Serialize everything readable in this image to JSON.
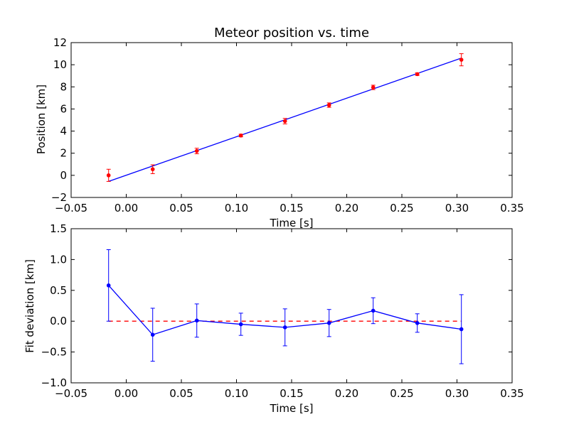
{
  "chart_data": [
    {
      "type": "scatter",
      "title": "Meteor position vs. time",
      "xlabel": "Time [s]",
      "ylabel": "Position [km]",
      "xlim": [
        -0.05,
        0.35
      ],
      "ylim": [
        -2,
        12
      ],
      "xticks": [
        "−0.05",
        "0.00",
        "0.05",
        "0.10",
        "0.15",
        "0.20",
        "0.25",
        "0.30",
        "0.35"
      ],
      "xtick_values": [
        -0.05,
        0.0,
        0.05,
        0.1,
        0.15,
        0.2,
        0.25,
        0.3,
        0.35
      ],
      "yticks": [
        "−2",
        "0",
        "2",
        "4",
        "6",
        "8",
        "10",
        "12"
      ],
      "ytick_values": [
        -2,
        0,
        2,
        4,
        6,
        8,
        10,
        12
      ],
      "grid": false,
      "series": [
        {
          "kind": "errorbar-points",
          "color": "#ff0000",
          "x": [
            -0.016,
            0.024,
            0.064,
            0.104,
            0.144,
            0.184,
            0.224,
            0.264,
            0.304
          ],
          "y": [
            0.0,
            0.55,
            2.2,
            3.6,
            4.9,
            6.35,
            7.95,
            9.15,
            10.45
          ],
          "yerr": [
            0.55,
            0.4,
            0.25,
            0.12,
            0.25,
            0.2,
            0.2,
            0.12,
            0.55
          ]
        },
        {
          "kind": "fit-line",
          "color": "#0000ff",
          "x": [
            -0.016,
            0.304
          ],
          "y": [
            -0.55,
            10.6
          ]
        }
      ]
    },
    {
      "type": "line",
      "title": "",
      "xlabel": "Time [s]",
      "ylabel": "Fit deviation [km]",
      "xlim": [
        -0.05,
        0.35
      ],
      "ylim": [
        -1.0,
        1.5
      ],
      "xticks": [
        "−0.05",
        "0.00",
        "0.05",
        "0.10",
        "0.15",
        "0.20",
        "0.25",
        "0.30",
        "0.35"
      ],
      "xtick_values": [
        -0.05,
        0.0,
        0.05,
        0.1,
        0.15,
        0.2,
        0.25,
        0.3,
        0.35
      ],
      "yticks": [
        "−1.0",
        "−0.5",
        "0.0",
        "0.5",
        "1.0",
        "1.5"
      ],
      "ytick_values": [
        -1.0,
        -0.5,
        0.0,
        0.5,
        1.0,
        1.5
      ],
      "grid": false,
      "series": [
        {
          "kind": "errorbar-line",
          "color": "#0000ff",
          "x": [
            -0.016,
            0.024,
            0.064,
            0.104,
            0.144,
            0.184,
            0.224,
            0.264,
            0.304
          ],
          "y": [
            0.58,
            -0.22,
            0.01,
            -0.05,
            -0.1,
            -0.03,
            0.17,
            -0.03,
            -0.13
          ],
          "yerr": [
            0.58,
            0.43,
            0.27,
            0.18,
            0.3,
            0.22,
            0.21,
            0.15,
            0.56
          ]
        },
        {
          "kind": "zero-line",
          "color": "#ff0000",
          "dashed": true,
          "x": [
            -0.016,
            0.304
          ],
          "y": [
            0.0,
            0.0
          ]
        }
      ]
    }
  ]
}
